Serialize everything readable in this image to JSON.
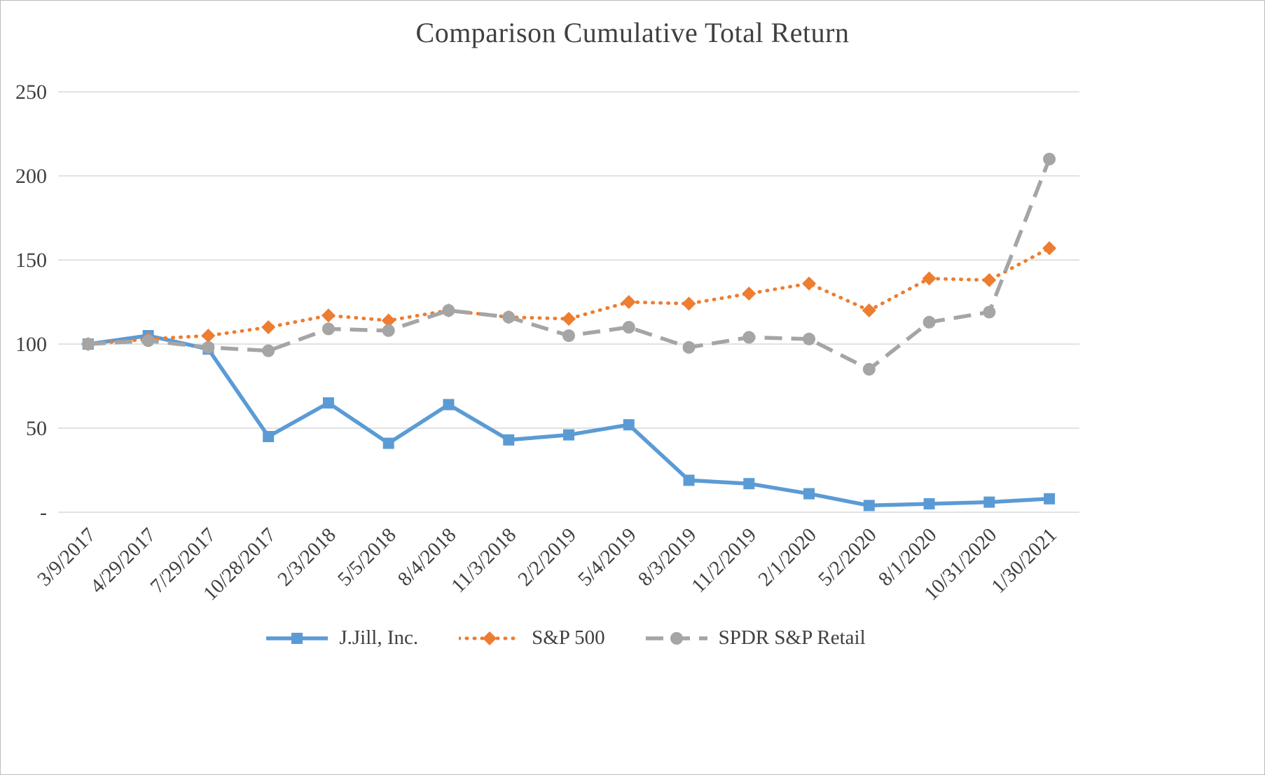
{
  "chart_data": {
    "type": "line",
    "title": "Comparison Cumulative Total Return",
    "x_labels": [
      "3/9/2017",
      "4/29/2017",
      "7/29/2017",
      "10/28/2017",
      "2/3/2018",
      "5/5/2018",
      "8/4/2018",
      "11/3/2018",
      "2/2/2019",
      "5/4/2019",
      "8/3/2019",
      "11/2/2019",
      "2/1/2020",
      "5/2/2020",
      "8/1/2020",
      "10/31/2020",
      "1/30/2021"
    ],
    "y_ticks": [
      {
        "label": "250",
        "value": 250
      },
      {
        "label": "200",
        "value": 200
      },
      {
        "label": "150",
        "value": 150
      },
      {
        "label": "100",
        "value": 100
      },
      {
        "label": "50",
        "value": 50
      },
      {
        "label": "-",
        "value": 0
      }
    ],
    "ylim": [
      0,
      250
    ],
    "grid": true,
    "legend_position": "bottom",
    "colors": {
      "jjill_blue": "#5B9BD5",
      "sp500_orange": "#ED7D31",
      "spdr_gray": "#A5A5A5",
      "gridline": "#D9D9D9",
      "text": "#404040"
    },
    "series": [
      {
        "name": "J.Jill, Inc.",
        "color": "#5B9BD5",
        "marker": "square",
        "line_style": "solid",
        "values": [
          100,
          105,
          97,
          45,
          65,
          41,
          64,
          43,
          46,
          52,
          19,
          17,
          11,
          4,
          5,
          6,
          8
        ]
      },
      {
        "name": "S&P 500",
        "color": "#ED7D31",
        "marker": "diamond",
        "line_style": "dotted",
        "values": [
          100,
          103,
          105,
          110,
          117,
          114,
          120,
          116,
          115,
          125,
          124,
          130,
          136,
          120,
          139,
          138,
          157
        ]
      },
      {
        "name": "SPDR S&P Retail",
        "color": "#A5A5A5",
        "marker": "circle",
        "line_style": "dashed",
        "values": [
          100,
          102,
          98,
          96,
          109,
          108,
          120,
          116,
          105,
          110,
          98,
          104,
          103,
          85,
          113,
          119,
          210
        ]
      }
    ]
  }
}
